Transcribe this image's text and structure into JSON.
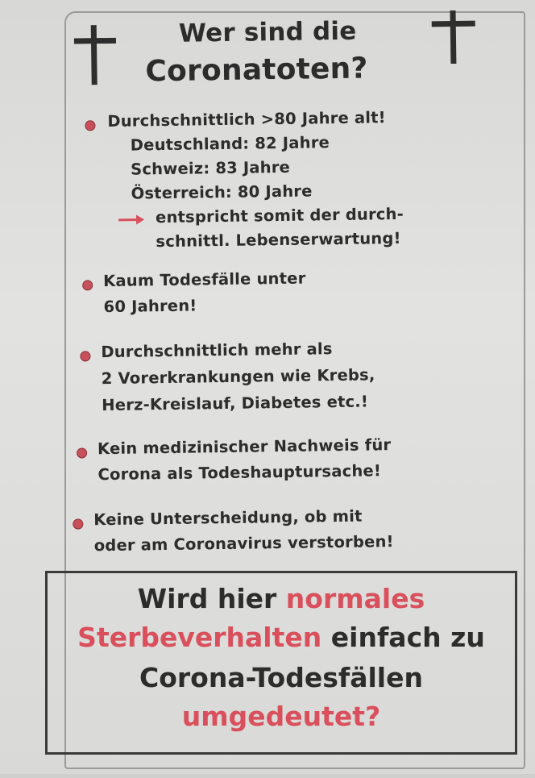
{
  "title": {
    "line1": "Wer sind die",
    "line2": "Coronatoten?"
  },
  "icons": {
    "left": "cross-icon",
    "right": "cross-icon",
    "bullet": "bullet-dot-icon",
    "arrow": "right-arrow-icon"
  },
  "colors": {
    "accent_red": "#d9505c",
    "text": "#2c2c2c",
    "paper": "#dcdcda"
  },
  "bullets": [
    {
      "lines": [
        "Durchschnittlich >80 Jahre alt!",
        "Deutschland: 82 Jahre",
        "Schweiz: 83 Jahre",
        "Österreich: 80 Jahre"
      ],
      "arrow_lines": [
        "entspricht somit der durch-",
        "schnittl. Lebenserwartung!"
      ]
    },
    {
      "lines": [
        "Kaum Todesfälle unter",
        "60 Jahren!"
      ]
    },
    {
      "lines": [
        "Durchschnittlich mehr als",
        "2 Vorerkrankungen wie Krebs,",
        "Herz-Kreislauf, Diabetes etc.!"
      ]
    },
    {
      "lines": [
        "Kein medizinischer Nachweis für",
        "Corona als Todeshauptursache!"
      ]
    },
    {
      "lines": [
        "Keine Unterscheidung, ob mit",
        "oder am Coronavirus verstorben!"
      ]
    }
  ],
  "conclusion": {
    "l1a": "Wird hier ",
    "l1b": "normales",
    "l2a": "Sterbeverhalten",
    "l2b": " einfach zu",
    "l3": "Corona-Todesfällen",
    "l4": "umgedeutet?"
  }
}
